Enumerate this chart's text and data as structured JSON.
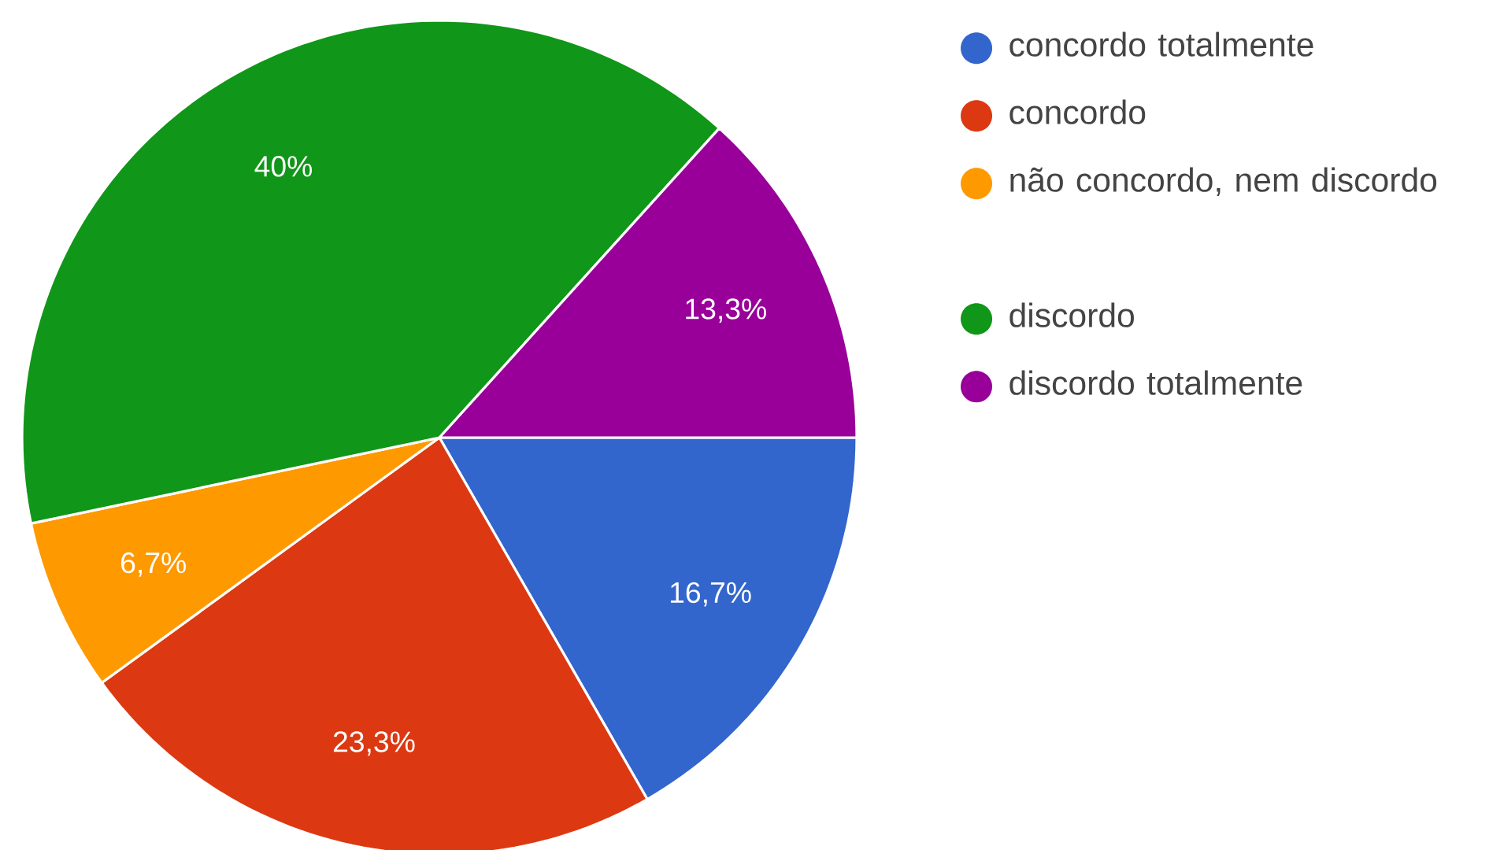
{
  "chart_data": {
    "type": "pie",
    "categories": [
      "concordo totalmente",
      "concordo",
      "não concordo, nem discordo",
      "discordo",
      "discordo totalmente"
    ],
    "values": [
      16.7,
      23.3,
      6.7,
      40,
      13.3
    ],
    "value_labels": [
      "16,7%",
      "23,3%",
      "6,7%",
      "40%",
      "13,3%"
    ],
    "colors": [
      "#3366cc",
      "#dc3912",
      "#ff9900",
      "#109618",
      "#990099"
    ],
    "legend": "right"
  }
}
